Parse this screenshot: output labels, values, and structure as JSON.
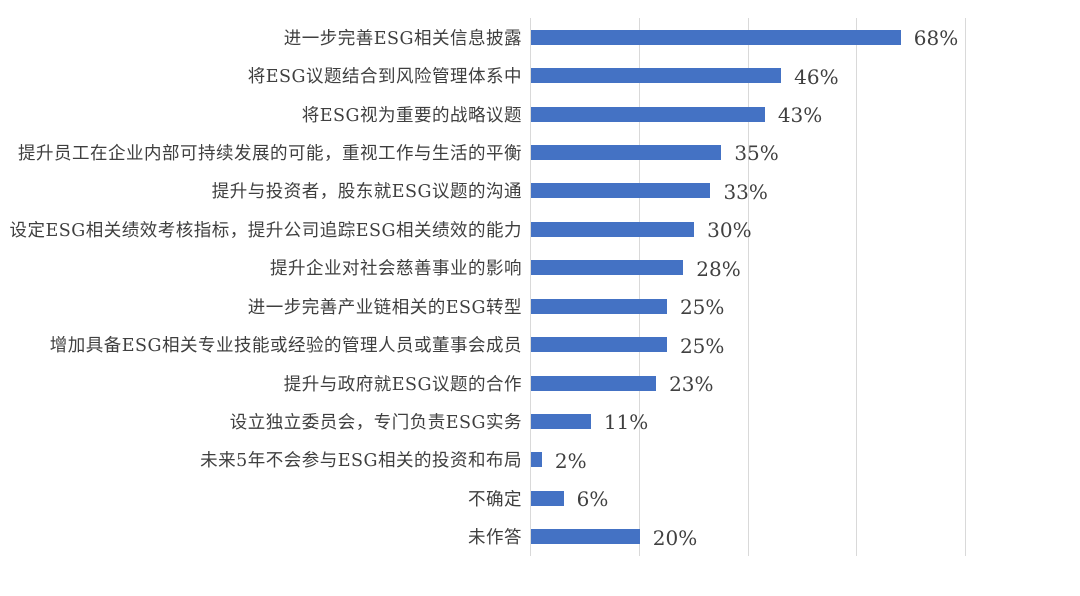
{
  "chart_data": {
    "type": "bar",
    "orientation": "horizontal",
    "title": "",
    "xlabel": "",
    "ylabel": "",
    "xlim": [
      0,
      80
    ],
    "grid": true,
    "gridline_ticks_pct": [
      0,
      20,
      40,
      60,
      80
    ],
    "legend": "none",
    "categories": [
      "进一步完善ESG相关信息披露",
      "将ESG议题结合到风险管理体系中",
      "将ESG视为重要的战略议题",
      "提升员工在企业内部可持续发展的可能，重视工作与生活的平衡",
      "提升与投资者，股东就ESG议题的沟通",
      "设定ESG相关绩效考核指标，提升公司追踪ESG相关绩效的能力",
      "提升企业对社会慈善事业的影响",
      "进一步完善产业链相关的ESG转型",
      "增加具备ESG相关专业技能或经验的管理人员或董事会成员",
      "提升与政府就ESG议题的合作",
      "设立独立委员会，专门负责ESG实务",
      "未来5年不会参与ESG相关的投资和布局",
      "不确定",
      "未作答"
    ],
    "values": [
      68,
      46,
      43,
      35,
      33,
      30,
      28,
      25,
      25,
      23,
      11,
      2,
      6,
      20
    ],
    "value_labels": [
      "68%",
      "46%",
      "43%",
      "35%",
      "33%",
      "30%",
      "28%",
      "25%",
      "25%",
      "23%",
      "11%",
      "2%",
      "6%",
      "20%"
    ],
    "colors": {
      "bar": "#4472C4",
      "gridline": "#d9d9d9",
      "category_text": "#3f3f3f",
      "value_text": "#404040",
      "background": "#ffffff"
    }
  }
}
